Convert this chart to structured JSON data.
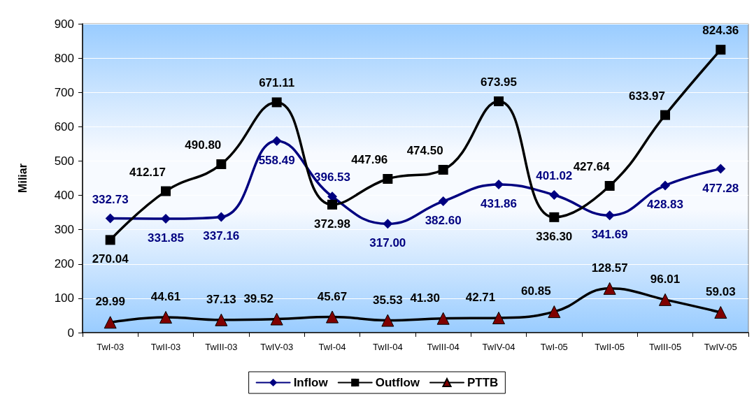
{
  "chart_data": {
    "type": "line",
    "ylabel": "Miliar",
    "categories": [
      "TwI-03",
      "TwII-03",
      "TwIII-03",
      "TwIV-03",
      "TwI-04",
      "TwII-04",
      "TwIII-04",
      "TwIV-04",
      "TwI-05",
      "TwII-05",
      "TwIII-05",
      "TwIV-05"
    ],
    "series": [
      {
        "name": "Inflow",
        "color": "#000080",
        "marker": "diamond",
        "values": [
          332.73,
          331.85,
          337.16,
          558.49,
          396.53,
          317.0,
          382.6,
          431.86,
          401.02,
          341.69,
          428.83,
          477.28
        ],
        "value_labels": [
          "332.73",
          "331.85",
          "337.16",
          "558.49",
          "396.53",
          "317.00",
          "382.60",
          "431.86",
          "401.02",
          "341.69",
          "428.83",
          "477.28"
        ]
      },
      {
        "name": "Outflow",
        "color": "#000000",
        "marker": "square",
        "values": [
          270.04,
          412.17,
          490.8,
          671.11,
          372.98,
          447.96,
          474.5,
          673.95,
          336.3,
          427.64,
          633.97,
          824.36
        ],
        "value_labels": [
          "270.04",
          "412.17",
          "490.80",
          "671.11",
          "372.98",
          "447.96",
          "474.50",
          "673.95",
          "336.30",
          "427.64",
          "633.97",
          "824.36"
        ]
      },
      {
        "name": "PTTB",
        "color": "#000000",
        "colors": [
          "#800000",
          "#800000",
          "#800000",
          "#800000",
          "#800000",
          "#800000",
          "#800000",
          "#800000",
          "#800000",
          "#800000",
          "#800000",
          "#800000"
        ],
        "marker": "triangle",
        "values": [
          29.99,
          44.61,
          37.13,
          39.52,
          45.67,
          35.53,
          41.3,
          42.71,
          60.85,
          128.57,
          96.01,
          59.03
        ],
        "value_labels": [
          "29.99",
          "44.61",
          "37.13",
          "39.52",
          "45.67",
          "35.53",
          "41.30",
          "42.71",
          "60.85",
          "128.57",
          "96.01",
          "59.03"
        ]
      }
    ],
    "ylim": [
      0,
      900
    ],
    "yticks": [
      0,
      100,
      200,
      300,
      400,
      500,
      600,
      700,
      800,
      900
    ],
    "grid": "y",
    "legend": "bottom"
  }
}
